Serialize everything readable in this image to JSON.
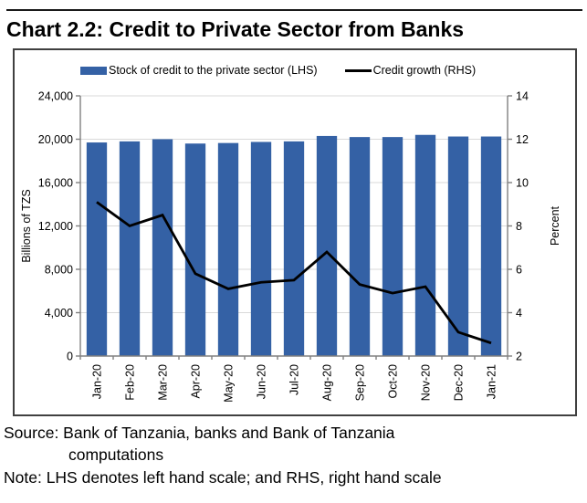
{
  "page": {
    "title": "Chart 2.2: Credit to Private Sector from Banks",
    "source_line1": "Source: Bank of Tanzania, banks and Bank of Tanzania",
    "source_line2": "computations",
    "note": "Note: LHS denotes left hand scale; and RHS, right hand scale"
  },
  "legend": {
    "bar_label": "Stock of credit to the private sector (LHS)",
    "line_label": "Credit growth (RHS)"
  },
  "colors": {
    "bar": "#3461a5",
    "line": "#000000",
    "grid": "#d9d9d9",
    "axis": "#808080",
    "text": "#000000",
    "border": "#404040"
  },
  "chart_data": {
    "type": "combo",
    "categories": [
      "Jan-20",
      "Feb-20",
      "Mar-20",
      "Apr-20",
      "May-20",
      "Jun-20",
      "Jul-20",
      "Aug-20",
      "Sep-20",
      "Oct-20",
      "Nov-20",
      "Dec-20",
      "Jan-21"
    ],
    "series": [
      {
        "name": "Stock of credit to the private sector (LHS)",
        "type": "bar",
        "axis": "left",
        "values": [
          19700,
          19800,
          20000,
          19600,
          19650,
          19750,
          19800,
          20300,
          20200,
          20200,
          20400,
          20250,
          20250
        ]
      },
      {
        "name": "Credit growth (RHS)",
        "type": "line",
        "axis": "right",
        "values": [
          9.1,
          8.0,
          8.5,
          5.8,
          5.1,
          5.4,
          5.5,
          6.8,
          5.3,
          4.9,
          5.2,
          3.1,
          2.6
        ]
      }
    ],
    "left_axis": {
      "label": "Billions of TZS",
      "min": 0,
      "max": 24000,
      "step": 4000
    },
    "right_axis": {
      "label": "Percent",
      "min": 2,
      "max": 14,
      "step": 2
    },
    "grid": true,
    "legend_position": "top"
  }
}
